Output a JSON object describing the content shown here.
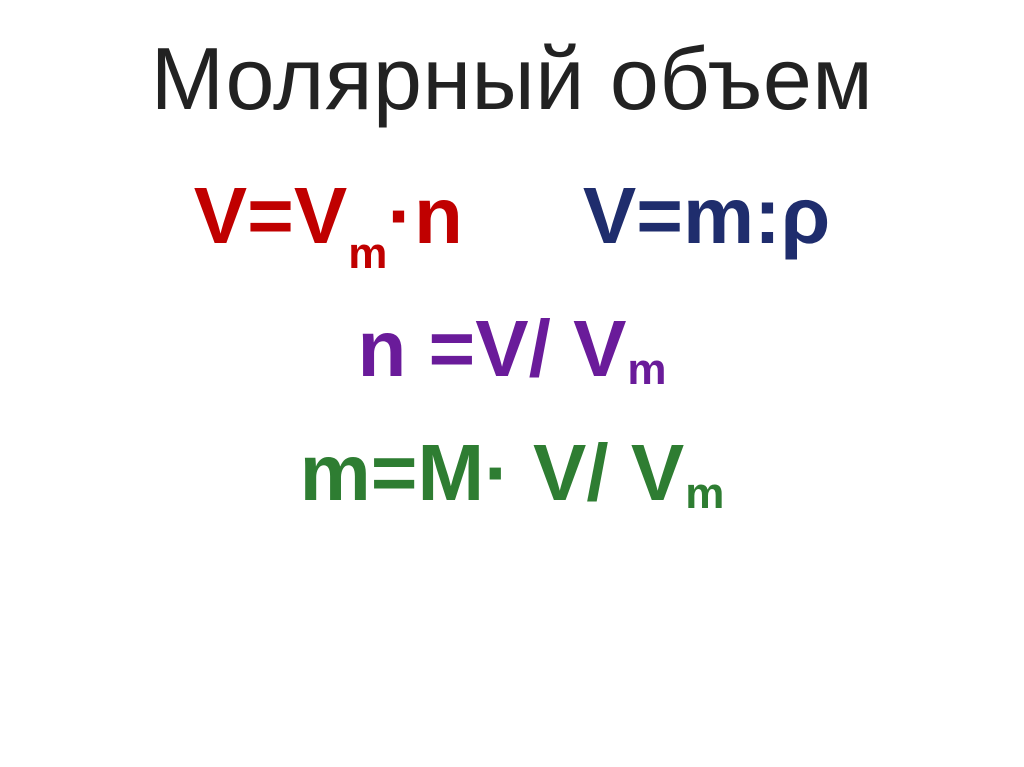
{
  "type": "slide",
  "background_color": "#ffffff",
  "title": {
    "text": "Молярный объем",
    "color": "#222222",
    "fontsize": 88,
    "weight": "normal"
  },
  "formulas": {
    "row1_left": {
      "color": "#c00000",
      "parts": {
        "a": "V=V",
        "sub": "m",
        "dot": "·",
        "b": "n"
      }
    },
    "row1_right": {
      "color": "#1f2d6d",
      "text": "V=m:ρ"
    },
    "row2": {
      "color": "#6a1b9a",
      "parts": {
        "a": "n =V/ V",
        "sub": "m"
      }
    },
    "row3": {
      "color": "#2e7d32",
      "parts": {
        "a": "m=M· V/ V",
        "sub": "m"
      }
    }
  },
  "formula_fontsize": 80,
  "formula_weight": "bold"
}
